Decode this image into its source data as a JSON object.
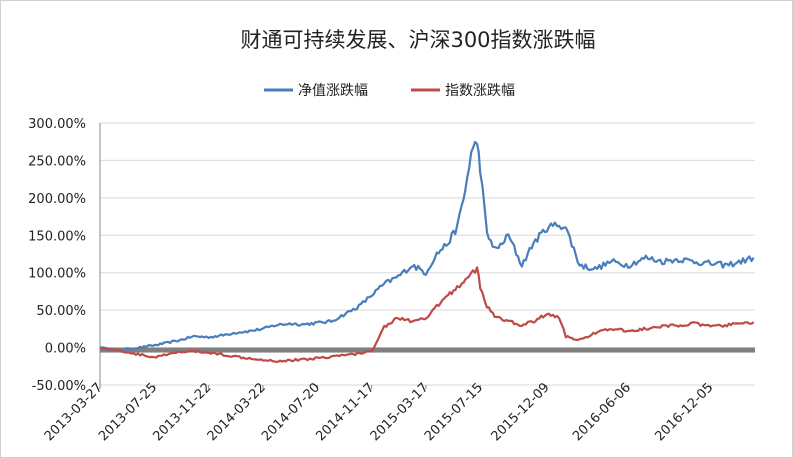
{
  "chart_data": {
    "type": "line",
    "title": "财通可持续发展、沪深300指数涨跌幅",
    "xlabel": "",
    "ylabel": "",
    "x_tick_labels": [
      "2013-03-27",
      "2013-07-25",
      "2013-11-22",
      "2014-03-22",
      "2014-07-20",
      "2014-11-17",
      "2015-03-17",
      "2015-07-15",
      "2015-12-09",
      "2016-06-06",
      "2016-12-05"
    ],
    "y_tick_labels": [
      "300.00%",
      "250.00%",
      "200.00%",
      "150.00%",
      "100.00%",
      "50.00%",
      "0.00%",
      "-50.00%"
    ],
    "ylim": [
      -50,
      300
    ],
    "grid": true,
    "legend_position": "top-center",
    "colors": {
      "series_1": "#4a7ebb",
      "series_2": "#be4b48",
      "zero_band": "#808080"
    },
    "series": [
      {
        "name": "净值涨跌幅",
        "x": [
          "2013-03-27",
          "2013-05-01",
          "2013-06-10",
          "2013-07-25",
          "2013-08-20",
          "2013-09-20",
          "2013-10-20",
          "2013-11-22",
          "2013-12-20",
          "2014-01-20",
          "2014-02-20",
          "2014-03-22",
          "2014-04-20",
          "2014-05-20",
          "2014-06-20",
          "2014-07-20",
          "2014-08-20",
          "2014-09-20",
          "2014-10-20",
          "2014-11-17",
          "2014-12-15",
          "2015-01-15",
          "2015-02-15",
          "2015-03-17",
          "2015-04-10",
          "2015-05-05",
          "2015-05-25",
          "2015-06-05",
          "2015-06-12",
          "2015-06-25",
          "2015-07-08",
          "2015-07-15",
          "2015-07-30",
          "2015-08-20",
          "2015-09-15",
          "2015-10-15",
          "2015-11-10",
          "2015-12-09",
          "2016-01-05",
          "2016-01-20",
          "2016-02-20",
          "2016-03-25",
          "2016-04-30",
          "2016-06-06",
          "2016-07-15",
          "2016-08-20",
          "2016-09-25",
          "2016-10-30",
          "2016-12-05",
          "2017-01-10",
          "2017-02-10",
          "2017-03-10"
        ],
        "y": [
          0,
          -4,
          -1,
          3,
          6,
          10,
          15,
          14,
          16,
          20,
          22,
          25,
          30,
          32,
          31,
          33,
          35,
          45,
          55,
          70,
          85,
          95,
          110,
          100,
          125,
          140,
          160,
          190,
          210,
          260,
          275,
          240,
          150,
          130,
          150,
          110,
          140,
          160,
          165,
          160,
          110,
          105,
          115,
          110,
          120,
          115,
          118,
          115,
          112,
          110,
          115,
          120
        ]
      },
      {
        "name": "指数涨跌幅",
        "x": [
          "2013-03-27",
          "2013-05-01",
          "2013-06-10",
          "2013-07-25",
          "2013-08-20",
          "2013-09-20",
          "2013-10-20",
          "2013-11-22",
          "2013-12-20",
          "2014-01-20",
          "2014-02-20",
          "2014-03-22",
          "2014-04-20",
          "2014-05-20",
          "2014-06-20",
          "2014-07-20",
          "2014-08-20",
          "2014-09-20",
          "2014-10-20",
          "2014-11-17",
          "2014-12-15",
          "2015-01-15",
          "2015-02-15",
          "2015-03-17",
          "2015-04-10",
          "2015-05-05",
          "2015-05-25",
          "2015-06-05",
          "2015-06-12",
          "2015-06-25",
          "2015-07-08",
          "2015-07-15",
          "2015-07-30",
          "2015-08-20",
          "2015-09-15",
          "2015-10-15",
          "2015-11-10",
          "2015-12-09",
          "2016-01-05",
          "2016-01-20",
          "2016-02-20",
          "2016-03-25",
          "2016-04-30",
          "2016-06-06",
          "2016-07-15",
          "2016-08-20",
          "2016-09-25",
          "2016-10-30",
          "2016-12-05",
          "2017-01-10",
          "2017-02-10",
          "2017-03-10"
        ],
        "y": [
          0,
          -3,
          -8,
          -13,
          -10,
          -6,
          -5,
          -7,
          -9,
          -12,
          -14,
          -16,
          -18,
          -17,
          -16,
          -14,
          -12,
          -10,
          -8,
          -5,
          28,
          40,
          35,
          38,
          55,
          70,
          80,
          85,
          92,
          100,
          105,
          80,
          55,
          40,
          35,
          30,
          35,
          45,
          40,
          15,
          10,
          20,
          25,
          22,
          25,
          28,
          30,
          32,
          28,
          30,
          32,
          34
        ]
      }
    ]
  }
}
